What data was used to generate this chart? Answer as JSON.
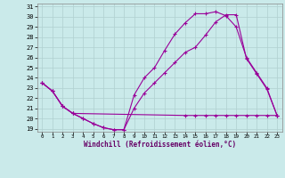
{
  "bg_color": "#caeaea",
  "grid_color": "#b0d0d0",
  "line_color": "#990099",
  "xlabel": "Windchill (Refroidissement éolien,°C)",
  "xlim": [
    -0.5,
    23.5
  ],
  "ylim": [
    18.7,
    31.3
  ],
  "yticks": [
    19,
    20,
    21,
    22,
    23,
    24,
    25,
    26,
    27,
    28,
    29,
    30,
    31
  ],
  "xticks": [
    0,
    1,
    2,
    3,
    4,
    5,
    6,
    7,
    8,
    9,
    10,
    11,
    12,
    13,
    14,
    15,
    16,
    17,
    18,
    19,
    20,
    21,
    22,
    23
  ],
  "line1_x": [
    0,
    1,
    2,
    3,
    4,
    5,
    6,
    7,
    8,
    9,
    10,
    11,
    12,
    13,
    14,
    15,
    16,
    17,
    18,
    19,
    20,
    21,
    22,
    23
  ],
  "line1_y": [
    23.5,
    22.7,
    21.2,
    20.5,
    20.0,
    19.5,
    19.1,
    18.9,
    18.9,
    22.3,
    24.0,
    25.0,
    26.7,
    28.3,
    29.4,
    30.3,
    30.3,
    30.5,
    30.1,
    29.0,
    26.0,
    24.5,
    23.0,
    20.3
  ],
  "line2_x": [
    0,
    1,
    2,
    3,
    4,
    5,
    6,
    7,
    8,
    9,
    10,
    11,
    12,
    13,
    14,
    15,
    16,
    17,
    18,
    19,
    20,
    21,
    22,
    23
  ],
  "line2_y": [
    23.5,
    22.7,
    21.2,
    20.5,
    20.0,
    19.5,
    19.1,
    18.9,
    18.9,
    21.0,
    22.5,
    23.5,
    24.5,
    25.5,
    26.5,
    27.0,
    28.2,
    29.5,
    30.2,
    30.2,
    25.9,
    24.4,
    22.9,
    20.3
  ],
  "line3_x": [
    0,
    1,
    2,
    3,
    14,
    15,
    16,
    17,
    18,
    19,
    20,
    21,
    22,
    23
  ],
  "line3_y": [
    23.5,
    22.7,
    21.2,
    20.5,
    20.3,
    20.3,
    20.3,
    20.3,
    20.3,
    20.3,
    20.3,
    20.3,
    20.3,
    20.3
  ]
}
